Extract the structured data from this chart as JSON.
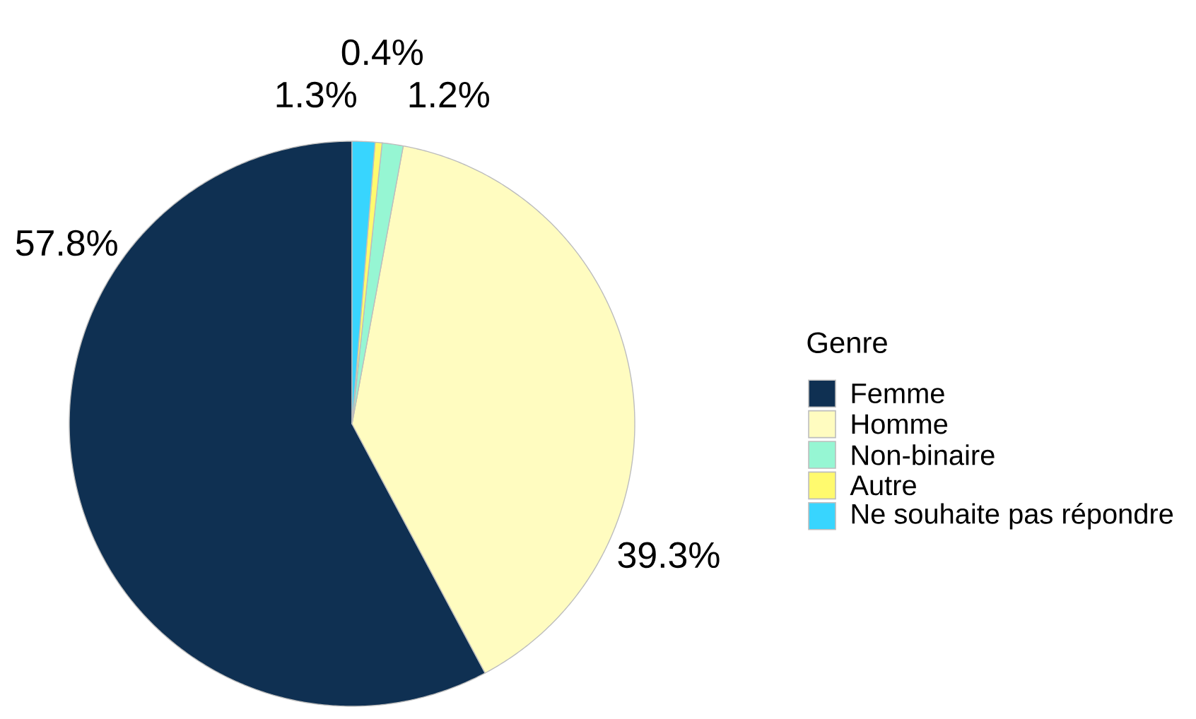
{
  "chart_data": {
    "type": "pie",
    "legend_title": "Genre",
    "legend": "right",
    "categories": [
      "Femme",
      "Homme",
      "Non-binaire",
      "Autre",
      "Ne souhaite pas répondre"
    ],
    "values": [
      57.8,
      39.3,
      1.2,
      0.4,
      1.3
    ],
    "value_labels": [
      "57.8%",
      "39.3%",
      "1.2%",
      "0.4%",
      "1.3%"
    ],
    "colors": [
      "#0f3052",
      "#fffcc0",
      "#96f6d3",
      "#fffa6e",
      "#38d5fe"
    ]
  }
}
